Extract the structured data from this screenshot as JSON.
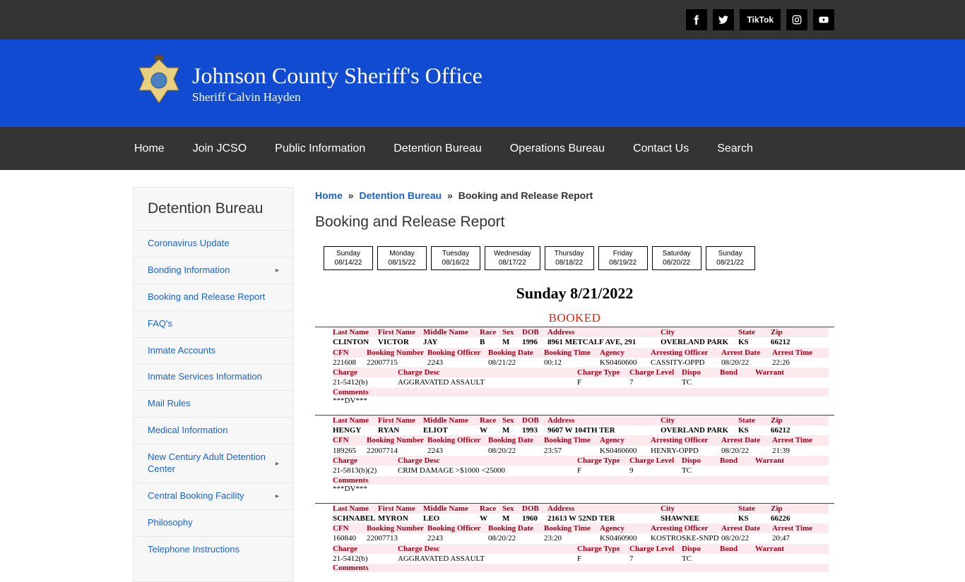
{
  "social": {
    "tiktok_label": "TikTok"
  },
  "header": {
    "title": "Johnson County Sheriff's Office",
    "subtitle": "Sheriff Calvin Hayden"
  },
  "nav": [
    "Home",
    "Join JCSO",
    "Public Information",
    "Detention Bureau",
    "Operations Bureau",
    "Contact Us",
    "Search"
  ],
  "sidebar": {
    "title": "Detention Bureau",
    "items": [
      {
        "label": "Coronavirus Update",
        "has_children": false
      },
      {
        "label": "Bonding Information",
        "has_children": true
      },
      {
        "label": "Booking and Release Report",
        "has_children": false
      },
      {
        "label": "FAQ's",
        "has_children": false
      },
      {
        "label": "Inmate Accounts",
        "has_children": false
      },
      {
        "label": "Inmate Services Information",
        "has_children": false
      },
      {
        "label": "Mail Rules",
        "has_children": false
      },
      {
        "label": "Medical Information",
        "has_children": false
      },
      {
        "label": "New Century Adult Detention Center",
        "has_children": true
      },
      {
        "label": "Central Booking Facility",
        "has_children": true
      },
      {
        "label": "Philosophy",
        "has_children": false
      },
      {
        "label": "Telephone Instructions",
        "has_children": false
      }
    ]
  },
  "breadcrumb": {
    "home": "Home",
    "middle": "Detention Bureau",
    "current": "Booking and Release Report"
  },
  "page_title": "Booking and Release Report",
  "dates": [
    {
      "day": "Sunday",
      "date": "08/14/22"
    },
    {
      "day": "Monday",
      "date": "08/15/22"
    },
    {
      "day": "Tuesday",
      "date": "08/16/22"
    },
    {
      "day": "Wednesday",
      "date": "08/17/22"
    },
    {
      "day": "Thursday",
      "date": "08/18/22"
    },
    {
      "day": "Friday",
      "date": "08/19/22"
    },
    {
      "day": "Saturday",
      "date": "08/20/22"
    },
    {
      "day": "Sunday",
      "date": "08/21/22"
    }
  ],
  "report": {
    "title": "Sunday 8/21/2022",
    "section": "BOOKED",
    "labels": {
      "identity": [
        "Last Name",
        "First Name",
        "Middle Name",
        "Race",
        "Sex",
        "DOB",
        "Address",
        "City",
        "State",
        "Zip"
      ],
      "booking": [
        "CFN",
        "Booking Number",
        "Booking Officer",
        "Booking Date",
        "Booking Time",
        "Agency",
        "Arresting Officer",
        "Arrest Date",
        "Arrest Time"
      ],
      "charge": [
        "Charge",
        "Charge Desc",
        "Charge Type",
        "Charge Level",
        "Dispo",
        "Bond",
        "Warrant"
      ],
      "comments": "Comments"
    },
    "records": [
      {
        "identity": [
          "CLINTON",
          "VICTOR",
          "JAY",
          "B",
          "M",
          "1996",
          "8961 METCALF AVE, 291",
          "OVERLAND PARK",
          "KS",
          "66212"
        ],
        "booking": [
          "221608",
          "22007715",
          "2243",
          "08/21/22",
          "00:12",
          "KS0460600",
          "CASSITY-OPPD",
          "08/20/22",
          "22:26"
        ],
        "charge": [
          "21-5412(b)",
          "AGGRAVATED ASSAULT",
          "F",
          "7",
          "TC",
          "",
          ""
        ],
        "comments": "***DV***"
      },
      {
        "identity": [
          "HENGY",
          "RYAN",
          "ELIOT",
          "W",
          "M",
          "1993",
          "9607 W 104TH TER",
          "OVERLAND PARK",
          "KS",
          "66212"
        ],
        "booking": [
          "189265",
          "22007714",
          "2243",
          "08/20/22",
          "23:57",
          "KS0460600",
          "HENRY-OPPD",
          "08/20/22",
          "21:39"
        ],
        "charge": [
          "21-5813(b)(2)",
          "CRIM DAMAGE >$1000 <25000",
          "F",
          "9",
          "TC",
          "",
          ""
        ],
        "comments": "***DV***"
      },
      {
        "identity": [
          "SCHNABEL",
          "MYRON",
          "LEO",
          "W",
          "M",
          "1960",
          "21613 W 52ND TER",
          "SHAWNEE",
          "KS",
          "66226"
        ],
        "booking": [
          "160840",
          "22007713",
          "2243",
          "08/20/22",
          "23:20",
          "KS0460900",
          "KOSTROSKE-SNPD",
          "08/20/22",
          "20:47"
        ],
        "charge": [
          "21-5412(b)",
          "AGGRAVATED ASSAULT",
          "F",
          "7",
          "TC",
          "",
          ""
        ],
        "comments": ""
      }
    ]
  },
  "colors": {
    "blue": "#114bd2",
    "dark_gray": "#343434",
    "link_blue": "#1862d4",
    "label_red": "#a00018",
    "label_bg": "#fbe9ed",
    "booked_red": "#e52207"
  }
}
